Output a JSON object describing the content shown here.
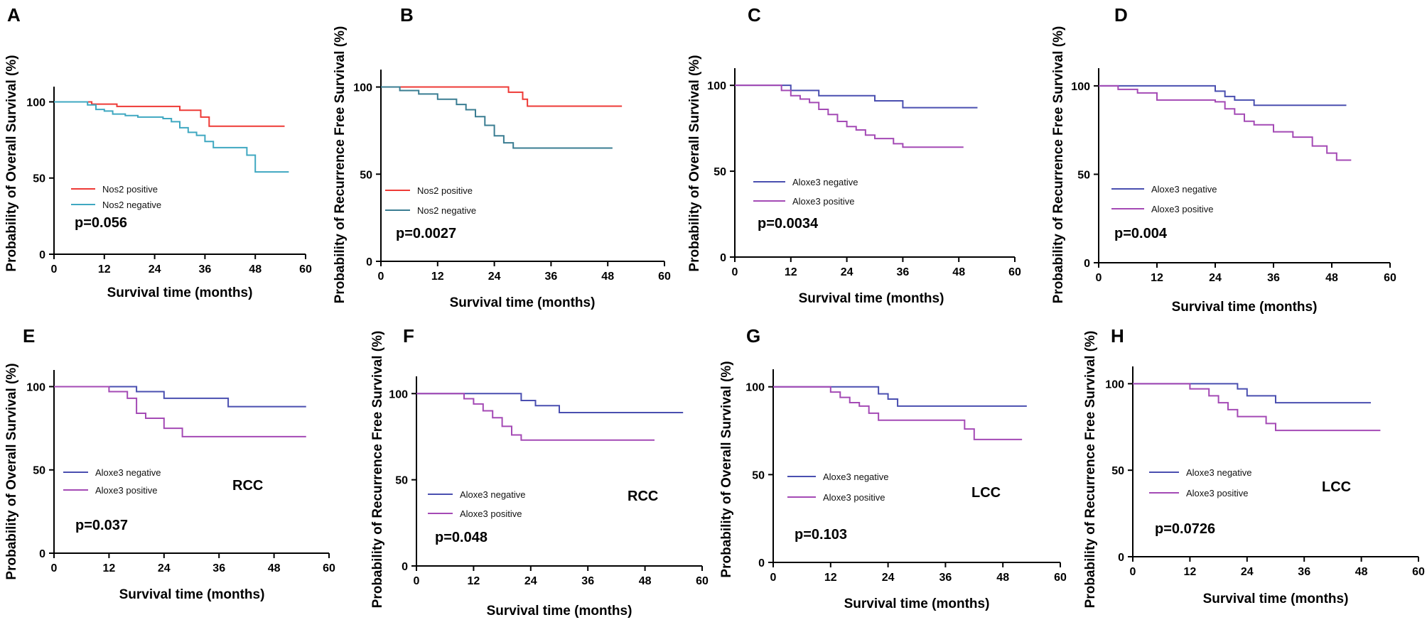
{
  "figure": {
    "x_ticks": [
      "0",
      "12",
      "24",
      "36",
      "48",
      "60"
    ],
    "y_ticks": [
      "0",
      "50",
      "100"
    ]
  },
  "chart_data": [
    {
      "type": "line",
      "step": true,
      "letter": "A",
      "xlabel": "Survival time (months)",
      "ylabel": "Probability of Overall Survival (%)",
      "xlim": [
        0,
        60
      ],
      "ylim": [
        0,
        110
      ],
      "series": [
        {
          "name": "Nos2 positive",
          "color": "#ee3a36",
          "x": [
            0,
            9,
            15,
            30,
            35,
            37,
            55
          ],
          "y": [
            100,
            98.5,
            97,
            94.5,
            90,
            84,
            84
          ]
        },
        {
          "name": "Nos2 negative",
          "color": "#3fa8c1",
          "x": [
            0,
            8,
            10,
            12,
            14,
            17,
            20,
            26,
            28,
            30,
            32,
            34,
            36,
            38,
            46,
            48,
            56
          ],
          "y": [
            100,
            98,
            95,
            94,
            92,
            91,
            90,
            89,
            87,
            83,
            80,
            78,
            74,
            70,
            65,
            54,
            54
          ]
        }
      ],
      "p_value": "p=0.056"
    },
    {
      "type": "line",
      "step": true,
      "letter": "B",
      "xlabel": "Survival time (months)",
      "ylabel": "Probability of Recurrence Free Survival (%)",
      "xlim": [
        0,
        60
      ],
      "ylim": [
        0,
        110
      ],
      "series": [
        {
          "name": "Nos2 positive",
          "color": "#ee3a36",
          "x": [
            0,
            27,
            30,
            31,
            51
          ],
          "y": [
            100,
            97,
            93,
            89,
            89
          ]
        },
        {
          "name": "Nos2 negative",
          "color": "#3a7d92",
          "x": [
            0,
            4,
            8,
            12,
            16,
            18,
            20,
            22,
            24,
            26,
            28,
            49
          ],
          "y": [
            100,
            98,
            96,
            93,
            90,
            87,
            83,
            78,
            72,
            68,
            65,
            65
          ]
        }
      ],
      "p_value": "p=0.0027"
    },
    {
      "type": "line",
      "step": true,
      "letter": "C",
      "xlabel": "Survival time (months)",
      "ylabel": "Probability of Overall Survival (%)",
      "xlim": [
        0,
        60
      ],
      "ylim": [
        0,
        110
      ],
      "series": [
        {
          "name": "Aloxe3 negative",
          "color": "#4a4fb0",
          "x": [
            0,
            12,
            18,
            30,
            36,
            52
          ],
          "y": [
            100,
            97,
            94,
            91,
            87,
            87
          ]
        },
        {
          "name": "Aloxe3 positive",
          "color": "#a44ab5",
          "x": [
            0,
            10,
            12,
            14,
            16,
            18,
            20,
            22,
            24,
            26,
            28,
            30,
            34,
            36,
            49
          ],
          "y": [
            100,
            97,
            94,
            92,
            90,
            86,
            83,
            79,
            76,
            74,
            71,
            69,
            66,
            64,
            64
          ]
        }
      ],
      "p_value": "p=0.0034"
    },
    {
      "type": "line",
      "step": true,
      "letter": "D",
      "xlabel": "Survival time (months)",
      "ylabel": "Probability of Recurrence Free Survival (%)",
      "xlim": [
        0,
        60
      ],
      "ylim": [
        0,
        110
      ],
      "series": [
        {
          "name": "Aloxe3 negative",
          "color": "#4a4fb0",
          "x": [
            0,
            24,
            26,
            28,
            32,
            51
          ],
          "y": [
            100,
            97,
            94,
            92,
            89,
            89
          ]
        },
        {
          "name": "Aloxe3 positive",
          "color": "#a44ab5",
          "x": [
            0,
            4,
            8,
            12,
            24,
            26,
            28,
            30,
            32,
            36,
            40,
            44,
            47,
            49,
            52
          ],
          "y": [
            100,
            98,
            96,
            92,
            91,
            87,
            84,
            80,
            78,
            74,
            71,
            66,
            62,
            58,
            58
          ]
        }
      ],
      "p_value": "p=0.004"
    },
    {
      "type": "line",
      "step": true,
      "letter": "E",
      "xlabel": "Survival time (months)",
      "ylabel": "Probability of Overall Survival (%)",
      "xlim": [
        0,
        60
      ],
      "ylim": [
        0,
        110
      ],
      "series": [
        {
          "name": "Aloxe3 negative",
          "color": "#4a4fb0",
          "x": [
            0,
            18,
            24,
            36,
            38,
            55
          ],
          "y": [
            100,
            97,
            93,
            93,
            88,
            88
          ]
        },
        {
          "name": "Aloxe3 positive",
          "color": "#a44ab5",
          "x": [
            0,
            12,
            16,
            18,
            20,
            24,
            28,
            55
          ],
          "y": [
            100,
            97,
            93,
            84,
            81,
            75,
            70,
            70
          ]
        }
      ],
      "p_value": "p=0.037",
      "subtype": "RCC"
    },
    {
      "type": "line",
      "step": true,
      "letter": "F",
      "xlabel": "Survival time (months)",
      "ylabel": "Probability of Recurrence Free Survival (%)",
      "xlim": [
        0,
        60
      ],
      "ylim": [
        0,
        110
      ],
      "series": [
        {
          "name": "Aloxe3 negative",
          "color": "#4a4fb0",
          "x": [
            0,
            22,
            25,
            30,
            56
          ],
          "y": [
            100,
            96,
            93,
            89,
            89
          ]
        },
        {
          "name": "Aloxe3 positive",
          "color": "#a44ab5",
          "x": [
            0,
            10,
            12,
            14,
            16,
            18,
            20,
            22,
            50
          ],
          "y": [
            100,
            97,
            94,
            90,
            86,
            81,
            76,
            73,
            73
          ]
        }
      ],
      "p_value": "p=0.048",
      "subtype": "RCC"
    },
    {
      "type": "line",
      "step": true,
      "letter": "G",
      "xlabel": "Survival time (months)",
      "ylabel": "Probability of Overall Survival (%)",
      "xlim": [
        0,
        60
      ],
      "ylim": [
        0,
        110
      ],
      "series": [
        {
          "name": "Aloxe3 negative",
          "color": "#4a4fb0",
          "x": [
            0,
            22,
            24,
            26,
            53
          ],
          "y": [
            100,
            96,
            93,
            89,
            89
          ]
        },
        {
          "name": "Aloxe3 positive",
          "color": "#a44ab5",
          "x": [
            0,
            12,
            14,
            16,
            18,
            20,
            22,
            36,
            40,
            42,
            52
          ],
          "y": [
            100,
            97,
            94,
            91,
            89,
            85,
            81,
            81,
            76,
            70,
            70
          ]
        }
      ],
      "p_value": "p=0.103",
      "subtype": "LCC"
    },
    {
      "type": "line",
      "step": true,
      "letter": "H",
      "xlabel": "Survival time (months)",
      "ylabel": "Probability of Recurrence Free Survival (%)",
      "xlim": [
        0,
        60
      ],
      "ylim": [
        0,
        110
      ],
      "series": [
        {
          "name": "Aloxe3 negative",
          "color": "#4a4fb0",
          "x": [
            0,
            22,
            24,
            30,
            50
          ],
          "y": [
            100,
            97,
            93,
            89,
            89
          ]
        },
        {
          "name": "Aloxe3 positive",
          "color": "#a44ab5",
          "x": [
            0,
            12,
            16,
            18,
            20,
            22,
            28,
            30,
            52
          ],
          "y": [
            100,
            97,
            93,
            89,
            85,
            81,
            77,
            73,
            73
          ]
        }
      ],
      "p_value": "p=0.0726",
      "subtype": "LCC"
    }
  ]
}
